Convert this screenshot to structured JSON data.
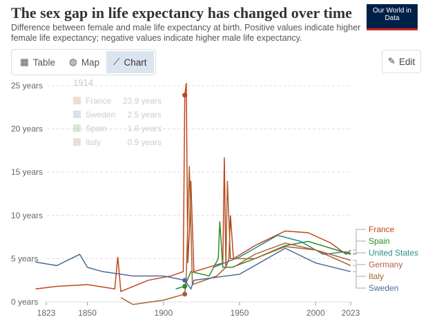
{
  "header": {
    "title": "The sex gap in life expectancy has changed over time",
    "subtitle": "Difference between female and male life expectancy at birth. Positive values indicate higher female life expectancy; negative values indicate higher male life expectancy.",
    "logo": "Our World in Data"
  },
  "tabs": [
    {
      "label": "Table",
      "icon": "table-icon"
    },
    {
      "label": "Map",
      "icon": "globe-icon"
    },
    {
      "label": "Chart",
      "icon": "line-chart-icon"
    }
  ],
  "edit_label": "Edit",
  "tooltip": {
    "year": "1914",
    "rows": [
      {
        "name": "France",
        "value": "23.9 years",
        "color": "#c0451b"
      },
      {
        "name": "Sweden",
        "value": "2.5 years",
        "color": "#4c6a9c"
      },
      {
        "name": "Spain",
        "value": "1.8 years",
        "color": "#2f8a29"
      },
      {
        "name": "Italy",
        "value": "0.9 years",
        "color": "#a2642e"
      }
    ]
  },
  "chart_data": {
    "type": "line",
    "title": "The sex gap in life expectancy has changed over time",
    "xlabel": "",
    "ylabel": "",
    "xlim": [
      1816,
      2023
    ],
    "ylim": [
      -1,
      25
    ],
    "yticks": [
      {
        "v": 0,
        "label": "0 years"
      },
      {
        "v": 5,
        "label": "5 years"
      },
      {
        "v": 10,
        "label": "10 years"
      },
      {
        "v": 15,
        "label": "15 years"
      },
      {
        "v": 20,
        "label": "20 years"
      },
      {
        "v": 25,
        "label": "25 years"
      }
    ],
    "xticks": [
      1823,
      1850,
      1900,
      1950,
      2000,
      2023
    ],
    "series": [
      {
        "name": "France",
        "color": "#c0451b",
        "points": [
          [
            1816,
            1.5
          ],
          [
            1830,
            1.8
          ],
          [
            1850,
            2
          ],
          [
            1868,
            1.5
          ],
          [
            1870,
            5.2
          ],
          [
            1872,
            1.2
          ],
          [
            1890,
            2.5
          ],
          [
            1905,
            3
          ],
          [
            1913,
            3.5
          ],
          [
            1914,
            23.9
          ],
          [
            1915,
            25.3
          ],
          [
            1916,
            4.5
          ],
          [
            1917,
            8
          ],
          [
            1918,
            14
          ],
          [
            1920,
            3.5
          ],
          [
            1939,
            4.5
          ],
          [
            1940,
            16.7
          ],
          [
            1941,
            4
          ],
          [
            1943,
            5
          ],
          [
            1944,
            10
          ],
          [
            1946,
            5
          ],
          [
            1960,
            6.5
          ],
          [
            1980,
            8.2
          ],
          [
            1995,
            8
          ],
          [
            2010,
            6.8
          ],
          [
            2020,
            5.5
          ],
          [
            2023,
            6
          ]
        ]
      },
      {
        "name": "Spain",
        "color": "#2f8a29",
        "points": [
          [
            1908,
            1.5
          ],
          [
            1914,
            1.8
          ],
          [
            1918,
            3.5
          ],
          [
            1930,
            3
          ],
          [
            1936,
            5
          ],
          [
            1937,
            9.3
          ],
          [
            1939,
            4
          ],
          [
            1945,
            4
          ],
          [
            1960,
            5
          ],
          [
            1980,
            6.5
          ],
          [
            1995,
            7
          ],
          [
            2010,
            6.2
          ],
          [
            2023,
            5.5
          ]
        ]
      },
      {
        "name": "United States",
        "color": "#2b8b8b",
        "points": [
          [
            1933,
            4
          ],
          [
            1950,
            5.2
          ],
          [
            1975,
            7.7
          ],
          [
            1990,
            7
          ],
          [
            2005,
            5.5
          ],
          [
            2020,
            5.8
          ],
          [
            2023,
            5.6
          ]
        ]
      },
      {
        "name": "Germany",
        "color": "#b35f3d",
        "points": [
          [
            1946,
            4
          ],
          [
            1960,
            5.5
          ],
          [
            1980,
            6.8
          ],
          [
            2000,
            6
          ],
          [
            2023,
            4.8
          ]
        ]
      },
      {
        "name": "Italy",
        "color": "#a2642e",
        "points": [
          [
            1872,
            0.5
          ],
          [
            1880,
            -0.3
          ],
          [
            1900,
            0.2
          ],
          [
            1914,
            0.9
          ],
          [
            1915,
            3
          ],
          [
            1917,
            15.7
          ],
          [
            1919,
            2
          ],
          [
            1935,
            3
          ],
          [
            1941,
            4
          ],
          [
            1942,
            14
          ],
          [
            1944,
            5
          ],
          [
            1960,
            5
          ],
          [
            1980,
            6.4
          ],
          [
            2000,
            6
          ],
          [
            2023,
            4.2
          ]
        ]
      },
      {
        "name": "Sweden",
        "color": "#4c6a9c",
        "points": [
          [
            1816,
            4.6
          ],
          [
            1830,
            4.2
          ],
          [
            1845,
            5.5
          ],
          [
            1850,
            4
          ],
          [
            1860,
            3.5
          ],
          [
            1880,
            3
          ],
          [
            1900,
            3
          ],
          [
            1914,
            2.5
          ],
          [
            1918,
            1.5
          ],
          [
            1920,
            2.5
          ],
          [
            1950,
            3.2
          ],
          [
            1980,
            6.2
          ],
          [
            2000,
            4.5
          ],
          [
            2023,
            3.5
          ]
        ]
      }
    ]
  }
}
